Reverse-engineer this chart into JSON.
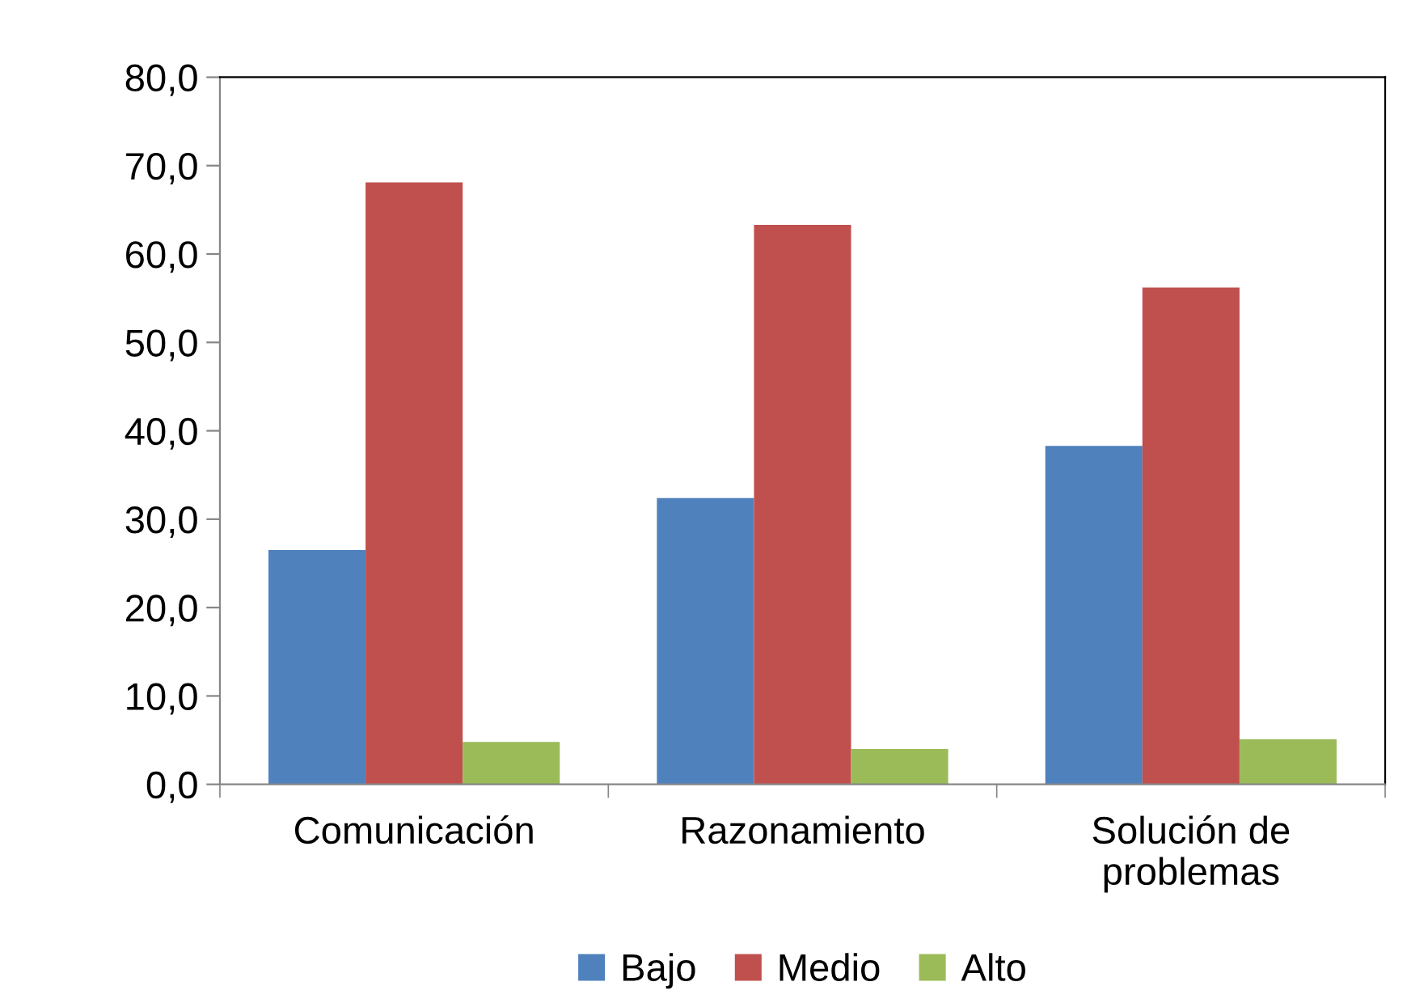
{
  "chart_data": {
    "type": "bar",
    "categories": [
      "Comunicación",
      "Razonamiento",
      "Solución de problemas"
    ],
    "series": [
      {
        "name": "Bajo",
        "color": "#4f81bd",
        "values": [
          26.5,
          32.4,
          38.3
        ]
      },
      {
        "name": "Medio",
        "color": "#c0504d",
        "values": [
          68.1,
          63.3,
          56.2
        ]
      },
      {
        "name": "Alto",
        "color": "#9bbb59",
        "values": [
          4.8,
          4.0,
          5.1
        ]
      }
    ],
    "ylim": [
      0,
      80
    ],
    "yticks": [
      {
        "value": 0,
        "label": "0,0"
      },
      {
        "value": 10,
        "label": "10,0"
      },
      {
        "value": 20,
        "label": "20,0"
      },
      {
        "value": 30,
        "label": "30,0"
      },
      {
        "value": 40,
        "label": "40,0"
      },
      {
        "value": 50,
        "label": "50,0"
      },
      {
        "value": 60,
        "label": "60,0"
      },
      {
        "value": 70,
        "label": "70,0"
      },
      {
        "value": 80,
        "label": "80,0"
      }
    ],
    "grid": false,
    "legend": "bottom"
  }
}
